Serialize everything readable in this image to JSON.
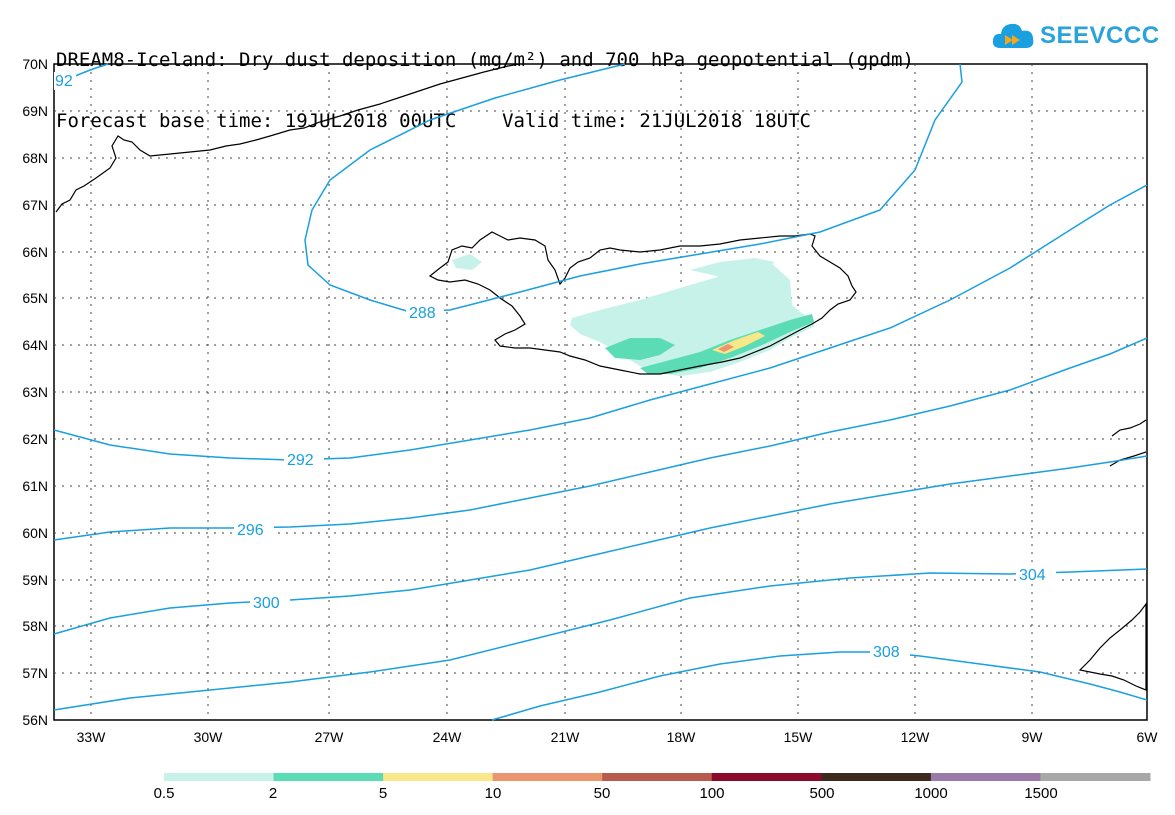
{
  "title": {
    "line1": "DREAM8-Iceland: Dry dust deposition (mg/m²) and 700 hPa geopotential (gpdm)",
    "line2": "Forecast base time: 19JUL2018 00UTC    Valid time: 21JUL2018 18UTC"
  },
  "logo": {
    "text": "SEEVCCC",
    "icon": "cloud-icon",
    "color": "#1a9fe0"
  },
  "map": {
    "lat_labels": [
      "70N",
      "69N",
      "68N",
      "67N",
      "66N",
      "65N",
      "64N",
      "63N",
      "62N",
      "61N",
      "60N",
      "59N",
      "58N",
      "57N",
      "56N"
    ],
    "lon_labels": [
      "33W",
      "30W",
      "27W",
      "24W",
      "21W",
      "18W",
      "15W",
      "12W",
      "9W",
      "6W"
    ],
    "contour_labels": [
      "92",
      "288",
      "292",
      "296",
      "300",
      "304",
      "308"
    ],
    "contour_color": "#1a9fe0"
  },
  "colorbar": {
    "labels": [
      "0.5",
      "2",
      "5",
      "10",
      "50",
      "100",
      "500",
      "1000",
      "1500"
    ],
    "colors": [
      "#c6f2e9",
      "#5cdcb4",
      "#f8e88a",
      "#ec9670",
      "#b85b4e",
      "#8c0a2c",
      "#3d2a1e",
      "#9a7aa6",
      "#a8a8a8"
    ]
  }
}
